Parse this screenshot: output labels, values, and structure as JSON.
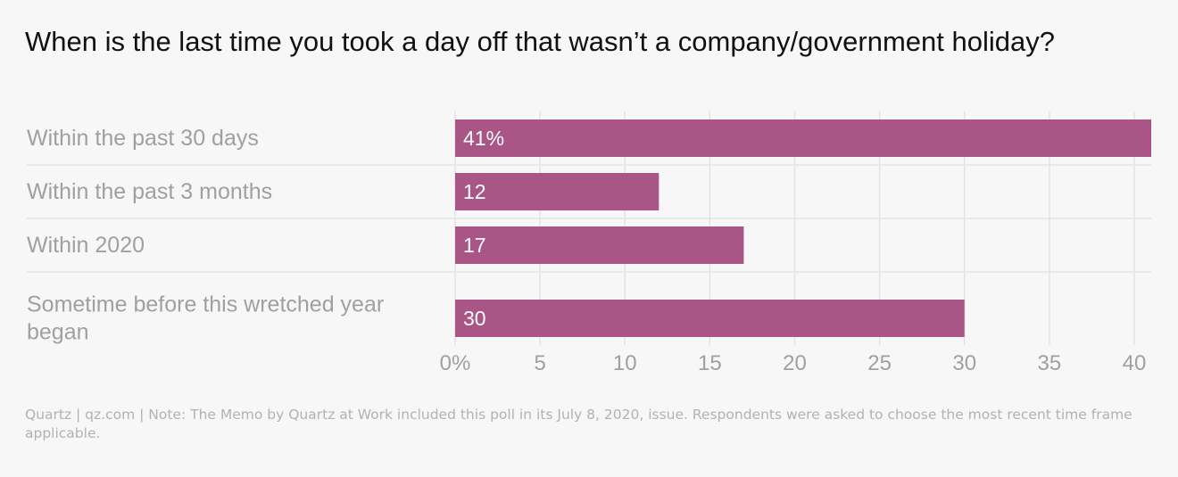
{
  "header": {
    "title": "When is the last time you took a day off that wasn’t a company/government holiday?"
  },
  "footer": {
    "text": "Quartz | qz.com | Note: The Memo by Quartz at Work included this poll in its July 8, 2020, issue. Respondents were asked to choose the most recent time frame applicable."
  },
  "colors": {
    "bar": "#a95686",
    "gridline": "#e3e3e3",
    "category_label": "#a0a0a0",
    "tick_label": "#a0a0a0",
    "value_label": "#ffffff",
    "background": "#f7f7f7"
  },
  "chart_data": {
    "type": "bar",
    "orientation": "horizontal",
    "categories": [
      [
        "Within the past 30 days"
      ],
      [
        "Within the past 3 months"
      ],
      [
        "Within 2020"
      ],
      [
        "Sometime before this wretched year",
        "began"
      ]
    ],
    "values": [
      41,
      12,
      17,
      30
    ],
    "value_labels": [
      "41%",
      "12",
      "17",
      "30"
    ],
    "xlim": [
      0,
      41
    ],
    "x_ticks": [
      0,
      5,
      10,
      15,
      20,
      25,
      30,
      35,
      40
    ],
    "x_tick_labels": [
      "0%",
      "5",
      "10",
      "15",
      "20",
      "25",
      "30",
      "35",
      "40"
    ],
    "grid": true,
    "legend": "none"
  }
}
